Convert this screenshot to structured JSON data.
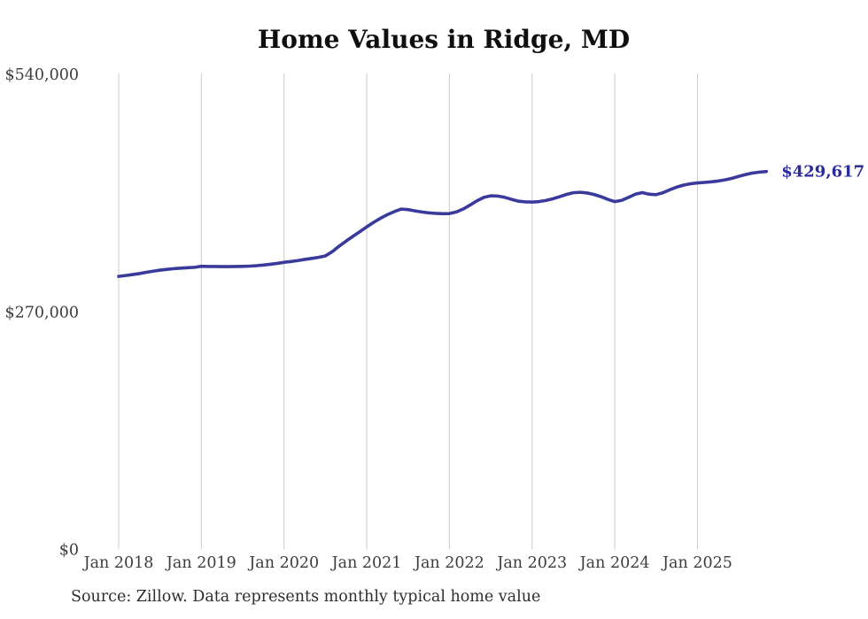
{
  "page": {
    "background": "#ffffff"
  },
  "chart": {
    "title": "Home Values in Ridge, MD",
    "source_note": "Source: Zillow. Data represents monthly typical home value",
    "end_label": "$429,617",
    "colors": {
      "line": "#3a3a9c",
      "end_label": "#2b2b9c",
      "grid": "#cccccc",
      "tick_text": "#3d3d3d",
      "title_text": "#0f0f0f",
      "source_text": "#2e2e2e"
    }
  },
  "chart_data": {
    "type": "line",
    "title": "Home Values in Ridge, MD",
    "x_interval": "month",
    "x_start": "2018-01",
    "x_end": "2025-11",
    "x_tick_labels": [
      "Jan 2018",
      "Jan 2019",
      "Jan 2020",
      "Jan 2021",
      "Jan 2022",
      "Jan 2023",
      "Jan 2024",
      "Jan 2025"
    ],
    "y_ticks": [
      {
        "label": "$540,000",
        "value": 540000
      },
      {
        "label": "$270,000",
        "value": 270000
      },
      {
        "label": "$0",
        "value": 0
      }
    ],
    "ylim": [
      0,
      540000
    ],
    "grid": "vertical",
    "legend": "none",
    "end_label": "$429,617",
    "final_value": 429617,
    "series": [
      {
        "name": "Typical home value",
        "values": [
          310400,
          311400,
          312500,
          313600,
          315000,
          316300,
          317500,
          318400,
          319200,
          319800,
          320300,
          320700,
          321900,
          321700,
          321600,
          321500,
          321500,
          321600,
          321800,
          322100,
          322600,
          323300,
          324200,
          325200,
          326400,
          327300,
          328400,
          329700,
          330800,
          332000,
          333700,
          338500,
          344800,
          350500,
          355900,
          361200,
          366700,
          371800,
          376500,
          380600,
          384000,
          386900,
          386300,
          384900,
          383600,
          382600,
          382000,
          381700,
          381800,
          383600,
          387000,
          391500,
          396300,
          400200,
          402000,
          401700,
          400300,
          398000,
          395900,
          395100,
          394900,
          395400,
          396700,
          398600,
          401000,
          403600,
          405500,
          406000,
          405200,
          403500,
          401000,
          397900,
          395400,
          396800,
          400200,
          403900,
          405600,
          403800,
          403300,
          405500,
          408900,
          411900,
          414200,
          415700,
          416600,
          417200,
          417900,
          418800,
          420100,
          421900,
          424100,
          426200,
          427900,
          428900,
          429617
        ]
      }
    ]
  }
}
